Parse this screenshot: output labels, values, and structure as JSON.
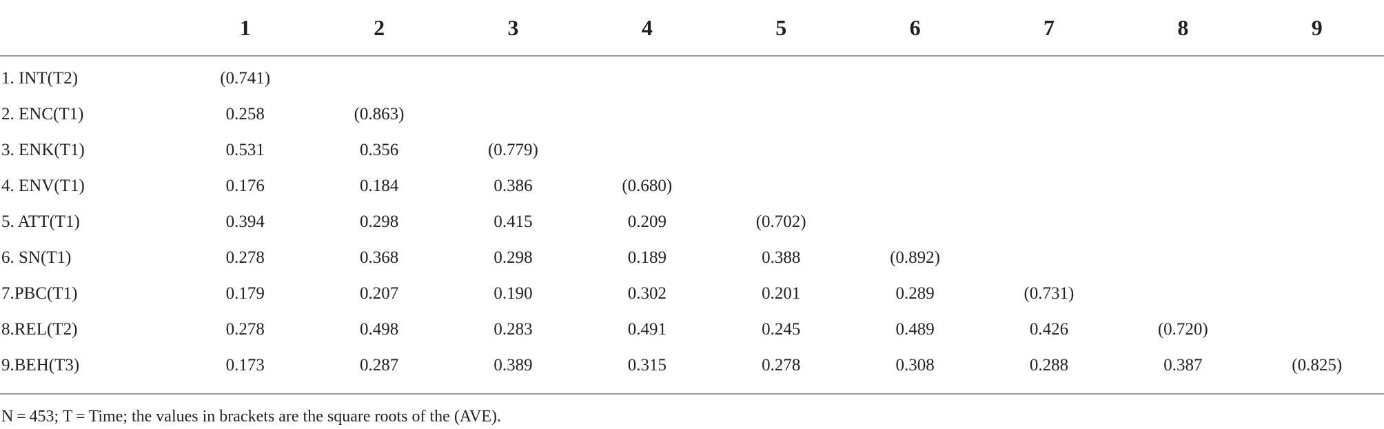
{
  "table": {
    "columns": [
      "1",
      "2",
      "3",
      "4",
      "5",
      "6",
      "7",
      "8",
      "9"
    ],
    "rows": [
      {
        "label": "1. INT(T2)",
        "cells": [
          "(0.741)",
          "",
          "",
          "",
          "",
          "",
          "",
          "",
          ""
        ]
      },
      {
        "label": "2. ENC(T1)",
        "cells": [
          "0.258",
          "(0.863)",
          "",
          "",
          "",
          "",
          "",
          "",
          ""
        ]
      },
      {
        "label": "3. ENK(T1)",
        "cells": [
          "0.531",
          "0.356",
          "(0.779)",
          "",
          "",
          "",
          "",
          "",
          ""
        ]
      },
      {
        "label": "4. ENV(T1)",
        "cells": [
          "0.176",
          "0.184",
          "0.386",
          "(0.680)",
          "",
          "",
          "",
          "",
          ""
        ]
      },
      {
        "label": "5. ATT(T1)",
        "cells": [
          "0.394",
          "0.298",
          "0.415",
          "0.209",
          "(0.702)",
          "",
          "",
          "",
          ""
        ]
      },
      {
        "label": "6. SN(T1)",
        "cells": [
          "0.278",
          "0.368",
          "0.298",
          "0.189",
          "0.388",
          "(0.892)",
          "",
          "",
          ""
        ]
      },
      {
        "label": "7.PBC(T1)",
        "cells": [
          "0.179",
          "0.207",
          "0.190",
          "0.302",
          "0.201",
          "0.289",
          "(0.731)",
          "",
          ""
        ]
      },
      {
        "label": "8.REL(T2)",
        "cells": [
          "0.278",
          "0.498",
          "0.283",
          "0.491",
          "0.245",
          "0.489",
          "0.426",
          "(0.720)",
          ""
        ]
      },
      {
        "label": "9.BEH(T3)",
        "cells": [
          "0.173",
          "0.287",
          "0.389",
          "0.315",
          "0.278",
          "0.308",
          "0.288",
          "0.387",
          "(0.825)"
        ]
      }
    ],
    "footnote": "N = 453; T = Time; the values in brackets are the square roots of the (AVE)."
  }
}
